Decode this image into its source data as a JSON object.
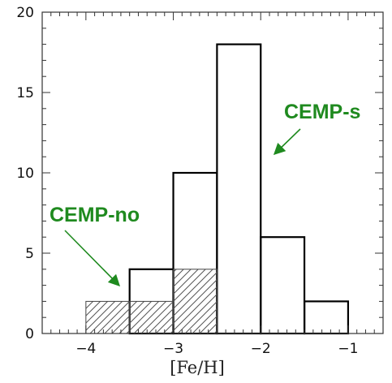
{
  "chart_data": {
    "type": "bar",
    "title": "",
    "xlabel": "[Fe/H]",
    "ylabel": "",
    "xlim": [
      -4.5,
      -0.6
    ],
    "ylim": [
      0,
      20
    ],
    "bin_width": 0.5,
    "x_ticks": [
      -4,
      -3,
      -2,
      -1
    ],
    "x_tick_labels": [
      "−4",
      "−3",
      "−2",
      "−1"
    ],
    "y_ticks": [
      0,
      5,
      10,
      15,
      20
    ],
    "y_tick_labels": [
      "0",
      "5",
      "10",
      "15",
      "20"
    ],
    "grid": false,
    "series": [
      {
        "style": "outline",
        "bins": [
          {
            "x0": -3.5,
            "x1": -3.0,
            "value": 4
          },
          {
            "x0": -3.0,
            "x1": -2.5,
            "value": 10
          },
          {
            "x0": -2.5,
            "x1": -2.0,
            "value": 18
          },
          {
            "x0": -2.0,
            "x1": -1.5,
            "value": 6
          },
          {
            "x0": -1.5,
            "x1": -1.0,
            "value": 2
          }
        ]
      },
      {
        "style": "hatched",
        "bins": [
          {
            "x0": -4.0,
            "x1": -3.5,
            "value": 2
          },
          {
            "x0": -3.5,
            "x1": -3.0,
            "value": 2
          },
          {
            "x0": -3.0,
            "x1": -2.5,
            "value": 4
          }
        ]
      }
    ],
    "annotations": [
      {
        "text": "CEMP-no",
        "color": "#1f8a1f"
      },
      {
        "text": "CEMP-s",
        "color": "#1f8a1f"
      }
    ]
  }
}
